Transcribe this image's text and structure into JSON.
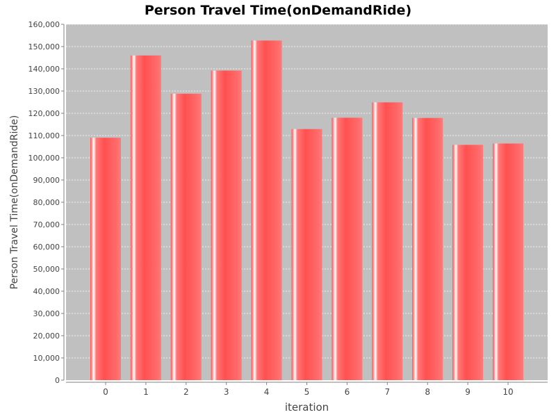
{
  "chart_data": {
    "type": "bar",
    "title": "Person Travel Time(onDemandRide)",
    "xlabel": "iteration",
    "ylabel": "Person Travel Time(onDemandRide)",
    "categories": [
      "0",
      "1",
      "2",
      "3",
      "4",
      "5",
      "6",
      "7",
      "8",
      "9",
      "10"
    ],
    "values": [
      109000,
      146000,
      128800,
      139200,
      152700,
      112900,
      118000,
      124900,
      117900,
      105800,
      106400
    ],
    "ylim": [
      0,
      160000
    ],
    "yticks": [
      0,
      10000,
      20000,
      30000,
      40000,
      50000,
      60000,
      70000,
      80000,
      90000,
      100000,
      110000,
      120000,
      130000,
      140000,
      150000,
      160000
    ],
    "ytick_labels": [
      "0",
      "10,000",
      "20,000",
      "30,000",
      "40,000",
      "50,000",
      "60,000",
      "70,000",
      "80,000",
      "90,000",
      "100,000",
      "110,000",
      "120,000",
      "130,000",
      "140,000",
      "150,000",
      "160,000"
    ],
    "grid": true,
    "legend": "none",
    "colors": {
      "bar": "#ff5555",
      "bar_highlight": "#ffffff",
      "plot_background": "#c0c0c0",
      "gridline": "#ffffff",
      "axis": "#808080",
      "text": "#444444",
      "title": "#000000"
    }
  }
}
